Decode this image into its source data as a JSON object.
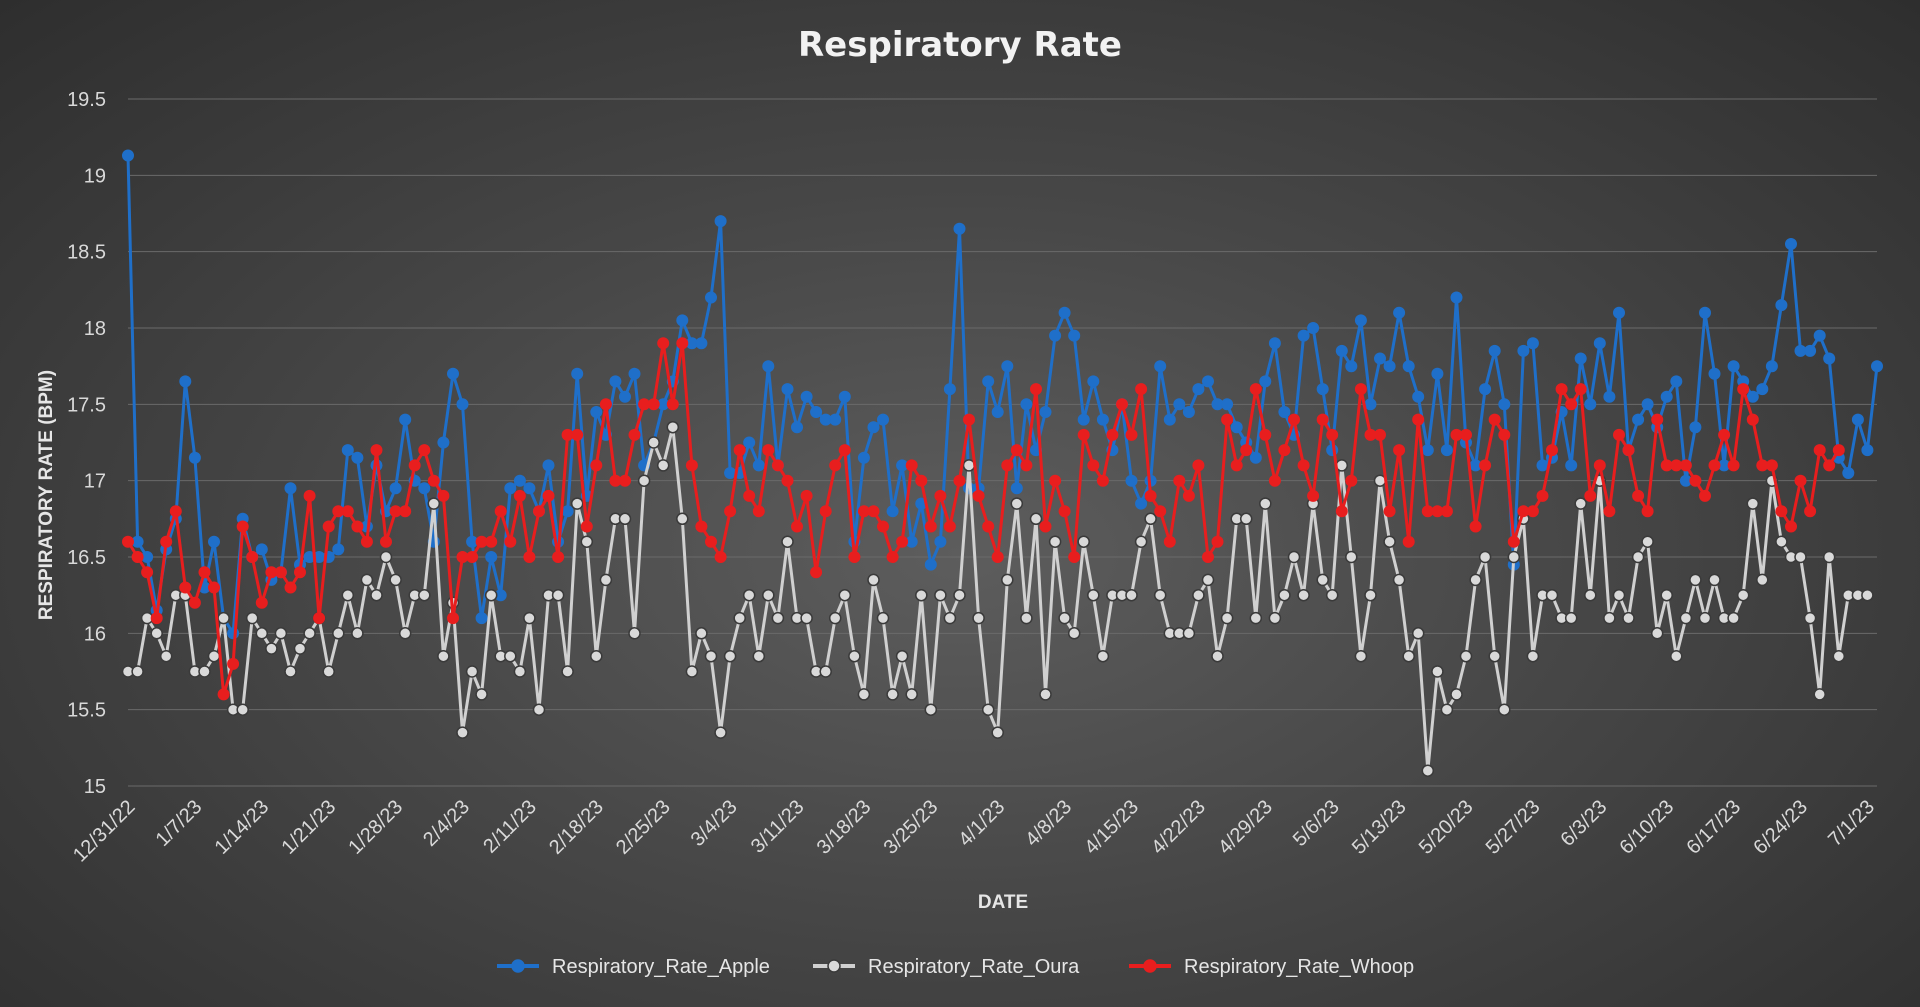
{
  "chart_data": {
    "type": "line",
    "title": "Respiratory Rate",
    "xlabel": "DATE",
    "ylabel": "RESPIRATORY RATE (BPM)",
    "ylim": [
      15,
      19.5
    ],
    "yticks": [
      "15",
      "15.5",
      "16",
      "16.5",
      "17",
      "17.5",
      "18",
      "18.5",
      "19",
      "19.5"
    ],
    "grid": true,
    "legend_position": "bottom",
    "start_date": "2022-12-31",
    "xtick_labels": [
      "12/31/22",
      "1/7/23",
      "1/14/23",
      "1/21/23",
      "1/28/23",
      "2/4/23",
      "2/11/23",
      "2/18/23",
      "2/25/23",
      "3/4/23",
      "3/11/23",
      "3/18/23",
      "3/25/23",
      "4/1/23",
      "4/8/23",
      "4/15/23",
      "4/22/23",
      "4/29/23",
      "5/6/23",
      "5/13/23",
      "5/20/23",
      "5/27/23",
      "6/3/23",
      "6/10/23",
      "6/17/23",
      "6/24/23",
      "7/1/23"
    ],
    "series": [
      {
        "name": "Respiratory_Rate_Apple",
        "color": "#1f6fc9",
        "marker": "filled-circle",
        "values": [
          19.13,
          16.6,
          16.5,
          16.15,
          16.55,
          16.75,
          17.65,
          17.15,
          16.3,
          16.6,
          16.1,
          16.0,
          16.75,
          16.5,
          16.55,
          16.35,
          16.4,
          16.95,
          16.45,
          16.5,
          16.5,
          16.5,
          16.55,
          17.2,
          17.15,
          16.7,
          17.1,
          16.8,
          16.95,
          17.4,
          17.0,
          16.95,
          16.6,
          17.25,
          17.7,
          17.5,
          16.6,
          16.1,
          16.5,
          16.25,
          16.95,
          17.0,
          16.95,
          16.8,
          17.1,
          16.6,
          16.8,
          17.7,
          16.9,
          17.45,
          17.3,
          17.65,
          17.55,
          17.7,
          17.1,
          17.25,
          17.5,
          17.65,
          18.05,
          17.9,
          17.9,
          18.2,
          18.7,
          17.05,
          17.05,
          17.25,
          17.1,
          17.75,
          17.1,
          17.6,
          17.35,
          17.55,
          17.45,
          17.4,
          17.4,
          17.55,
          16.6,
          17.15,
          17.35,
          17.4,
          16.8,
          17.1,
          16.6,
          16.85,
          16.45,
          16.6,
          17.6,
          18.65,
          16.95,
          16.95,
          17.65,
          17.45,
          17.75,
          16.95,
          17.5,
          17.2,
          17.45,
          17.95,
          18.1,
          17.95,
          17.4,
          17.65,
          17.4,
          17.2,
          17.5,
          17.0,
          16.85,
          17.0,
          17.75,
          17.4,
          17.5,
          17.45,
          17.6,
          17.65,
          17.5,
          17.5,
          17.35,
          17.25,
          17.15,
          17.65,
          17.9,
          17.45,
          17.3,
          17.95,
          18.0,
          17.6,
          17.2,
          17.85,
          17.75,
          18.05,
          17.5,
          17.8,
          17.75,
          18.1,
          17.75,
          17.55,
          17.2,
          17.7,
          17.2,
          18.2,
          17.25,
          17.1,
          17.6,
          17.85,
          17.5,
          16.45,
          17.85,
          17.9,
          17.1,
          17.15,
          17.45,
          17.1,
          17.8,
          17.5,
          17.9,
          17.55,
          18.1,
          17.2,
          17.4,
          17.5,
          17.35,
          17.55,
          17.65,
          17.0,
          17.35,
          18.1,
          17.7,
          17.1,
          17.75,
          17.65,
          17.55,
          17.6,
          17.75,
          18.15,
          18.55,
          17.85,
          17.85,
          17.95,
          17.8,
          17.15,
          17.05,
          17.4,
          17.2,
          17.75
        ]
      },
      {
        "name": "Respiratory_Rate_Oura",
        "color": "#d0d0d0",
        "marker": "light-circle",
        "values": [
          15.75,
          15.75,
          16.1,
          16.0,
          15.85,
          16.25,
          16.25,
          15.75,
          15.75,
          15.85,
          16.1,
          15.5,
          15.5,
          16.1,
          16.0,
          15.9,
          16.0,
          15.75,
          15.9,
          16.0,
          16.1,
          15.75,
          16.0,
          16.25,
          16.0,
          16.35,
          16.25,
          16.5,
          16.35,
          16.0,
          16.25,
          16.25,
          16.85,
          15.85,
          16.2,
          15.35,
          15.75,
          15.6,
          16.25,
          15.85,
          15.85,
          15.75,
          16.1,
          15.5,
          16.25,
          16.25,
          15.75,
          16.85,
          16.6,
          15.85,
          16.35,
          16.75,
          16.75,
          16.0,
          17.0,
          17.25,
          17.1,
          17.35,
          16.75,
          15.75,
          16.0,
          15.85,
          15.35,
          15.85,
          16.1,
          16.25,
          15.85,
          16.25,
          16.1,
          16.6,
          16.1,
          16.1,
          15.75,
          15.75,
          16.1,
          16.25,
          15.85,
          15.6,
          16.35,
          16.1,
          15.6,
          15.85,
          15.6,
          16.25,
          15.5,
          16.25,
          16.1,
          16.25,
          17.1,
          16.1,
          15.5,
          15.35,
          16.35,
          16.85,
          16.1,
          16.75,
          15.6,
          16.6,
          16.1,
          16.0,
          16.6,
          16.25,
          15.85,
          16.25,
          16.25,
          16.25,
          16.6,
          16.75,
          16.25,
          16.0,
          16.0,
          16.0,
          16.25,
          16.35,
          15.85,
          16.1,
          16.75,
          16.75,
          16.1,
          16.85,
          16.1,
          16.25,
          16.5,
          16.25,
          16.85,
          16.35,
          16.25,
          17.1,
          16.5,
          15.85,
          16.25,
          17.0,
          16.6,
          16.35,
          15.85,
          16.0,
          15.1,
          15.75,
          15.5,
          15.6,
          15.85,
          16.35,
          16.5,
          15.85,
          15.5,
          16.5,
          16.75,
          15.85,
          16.25,
          16.25,
          16.1,
          16.1,
          16.85,
          16.25,
          17.0,
          16.1,
          16.25,
          16.1,
          16.5,
          16.6,
          16.0,
          16.25,
          15.85,
          16.1,
          16.35,
          16.1,
          16.35,
          16.1,
          16.1,
          16.25,
          16.85,
          16.35,
          17.0,
          16.6,
          16.5,
          16.5,
          16.1,
          15.6,
          16.5,
          15.85,
          16.25,
          16.25,
          16.25
        ]
      },
      {
        "name": "Respiratory_Rate_Whoop",
        "color": "#e81e1e",
        "marker": "filled-circle",
        "values": [
          16.6,
          16.5,
          16.4,
          16.1,
          16.6,
          16.8,
          16.3,
          16.2,
          16.4,
          16.3,
          15.6,
          15.8,
          16.7,
          16.5,
          16.2,
          16.4,
          16.4,
          16.3,
          16.4,
          16.9,
          16.1,
          16.7,
          16.8,
          16.8,
          16.7,
          16.6,
          17.2,
          16.6,
          16.8,
          16.8,
          17.1,
          17.2,
          17.0,
          16.9,
          16.1,
          16.5,
          16.5,
          16.6,
          16.6,
          16.8,
          16.6,
          16.9,
          16.5,
          16.8,
          16.9,
          16.5,
          17.3,
          17.3,
          16.7,
          17.1,
          17.5,
          17.0,
          17.0,
          17.3,
          17.5,
          17.5,
          17.9,
          17.5,
          17.9,
          17.1,
          16.7,
          16.6,
          16.5,
          16.8,
          17.2,
          16.9,
          16.8,
          17.2,
          17.1,
          17.0,
          16.7,
          16.9,
          16.4,
          16.8,
          17.1,
          17.2,
          16.5,
          16.8,
          16.8,
          16.7,
          16.5,
          16.6,
          17.1,
          17.0,
          16.7,
          16.9,
          16.7,
          17.0,
          17.4,
          16.9,
          16.7,
          16.5,
          17.1,
          17.2,
          17.1,
          17.6,
          16.7,
          17.0,
          16.8,
          16.5,
          17.3,
          17.1,
          17.0,
          17.3,
          17.5,
          17.3,
          17.6,
          16.9,
          16.8,
          16.6,
          17.0,
          16.9,
          17.1,
          16.5,
          16.6,
          17.4,
          17.1,
          17.2,
          17.6,
          17.3,
          17.0,
          17.2,
          17.4,
          17.1,
          16.9,
          17.4,
          17.3,
          16.8,
          17.0,
          17.6,
          17.3,
          17.3,
          16.8,
          17.2,
          16.6,
          17.4,
          16.8,
          16.8,
          16.8,
          17.3,
          17.3,
          16.7,
          17.1,
          17.4,
          17.3,
          16.6,
          16.8,
          16.8,
          16.9,
          17.2,
          17.6,
          17.5,
          17.6,
          16.9,
          17.1,
          16.8,
          17.3,
          17.2,
          16.9,
          16.8,
          17.4,
          17.1,
          17.1,
          17.1,
          17.0,
          16.9,
          17.1,
          17.3,
          17.1,
          17.6,
          17.4,
          17.1,
          17.1,
          16.8,
          16.7,
          17.0,
          16.8,
          17.2,
          17.1,
          17.2
        ]
      }
    ]
  }
}
